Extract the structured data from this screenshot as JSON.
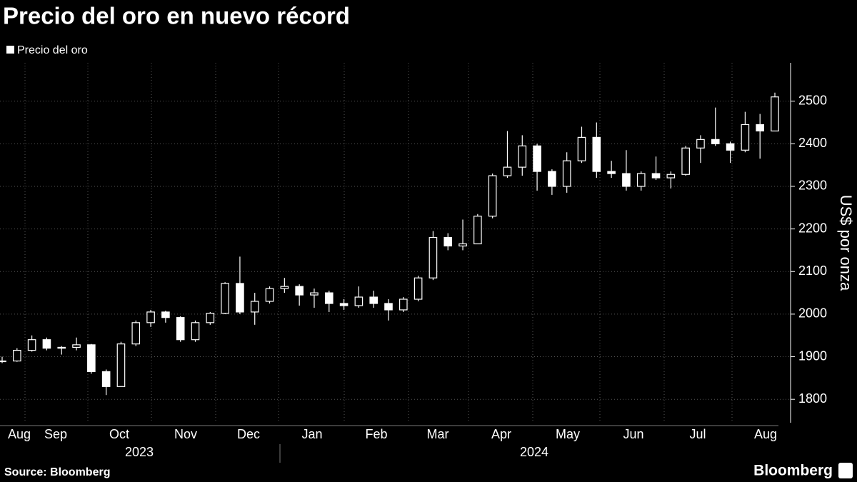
{
  "chart_data": {
    "type": "candlestick",
    "title": "Precio del oro en nuevo récord",
    "y_label": "US$ por onza",
    "source": "Source: Bloomberg",
    "brand": "Bloomberg",
    "months": [
      "Aug",
      "Sep",
      "Oct",
      "Nov",
      "Dec",
      "Jan",
      "Feb",
      "Mar",
      "Apr",
      "May",
      "Jun",
      "Jul",
      "Aug"
    ],
    "years": [
      "2023",
      "2024"
    ],
    "ylim": [
      1745,
      2590
    ],
    "yticks": [
      1800,
      1900,
      2000,
      2100,
      2200,
      2300,
      2400,
      2500
    ],
    "grid": true,
    "series": [
      {
        "name": "Precio del oro",
        "color": "#ffffff",
        "open": [
          1890,
          1890,
          1915,
          1940,
          1920,
          1922,
          1928,
          1865,
          1830,
          1930,
          1980,
          2005,
          1992,
          1940,
          1980,
          2002,
          2072,
          2005,
          2030,
          2060,
          2065,
          2045,
          2050,
          2025,
          2020,
          2040,
          2025,
          2010,
          2035,
          2085,
          2180,
          2160,
          2165,
          2230,
          2325,
          2345,
          2395,
          2335,
          2300,
          2360,
          2415,
          2335,
          2330,
          2300,
          2330,
          2320,
          2328,
          2390,
          2410,
          2400,
          2385,
          2445,
          2430
        ],
        "high": [
          1900,
          1920,
          1950,
          1945,
          1925,
          1945,
          1930,
          1870,
          1935,
          1985,
          2010,
          2008,
          1995,
          1985,
          2005,
          2075,
          2135,
          2050,
          2065,
          2085,
          2070,
          2060,
          2055,
          2035,
          2065,
          2055,
          2035,
          2040,
          2090,
          2195,
          2190,
          2222,
          2235,
          2330,
          2430,
          2420,
          2400,
          2340,
          2380,
          2440,
          2450,
          2360,
          2385,
          2335,
          2370,
          2335,
          2395,
          2420,
          2485,
          2405,
          2475,
          2470,
          2520
        ],
        "low": [
          1885,
          1888,
          1912,
          1915,
          1905,
          1915,
          1860,
          1810,
          1830,
          1925,
          1970,
          1980,
          1935,
          1935,
          1975,
          2000,
          2000,
          1975,
          2025,
          2050,
          2020,
          2015,
          2005,
          2010,
          2015,
          2015,
          1985,
          2005,
          2030,
          2080,
          2150,
          2150,
          2165,
          2225,
          2320,
          2325,
          2290,
          2280,
          2285,
          2355,
          2320,
          2320,
          2290,
          2290,
          2315,
          2295,
          2325,
          2355,
          2395,
          2355,
          2380,
          2365,
          2430
        ],
        "close": [
          1890,
          1915,
          1940,
          1920,
          1922,
          1928,
          1865,
          1830,
          1930,
          1980,
          2005,
          1992,
          1940,
          1980,
          2002,
          2072,
          2005,
          2030,
          2060,
          2065,
          2045,
          2050,
          2025,
          2020,
          2040,
          2025,
          2010,
          2035,
          2085,
          2180,
          2160,
          2165,
          2230,
          2325,
          2345,
          2395,
          2335,
          2300,
          2360,
          2415,
          2335,
          2330,
          2300,
          2330,
          2320,
          2328,
          2390,
          2410,
          2400,
          2385,
          2445,
          2430,
          2510
        ]
      }
    ]
  }
}
